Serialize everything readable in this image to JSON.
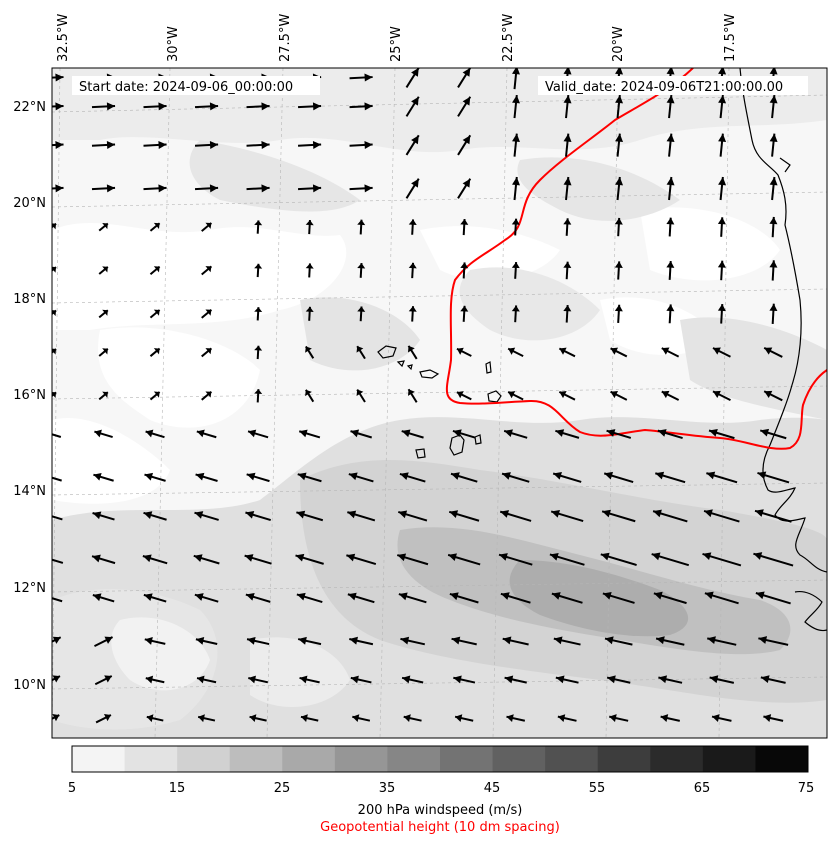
{
  "header": {
    "start_date": "Start date: 2024-09-06_00:00:00",
    "valid_date": "Valid_date: 2024-09-06T21:00:00.00"
  },
  "axes": {
    "lon_labels": [
      "32.5°W",
      "30°W",
      "27.5°W",
      "25°W",
      "22.5°W",
      "20°W",
      "17.5°W"
    ],
    "lat_labels": [
      "22°N",
      "20°N",
      "18°N",
      "16°N",
      "14°N",
      "12°N",
      "10°N"
    ],
    "lon_range": [
      -33.0,
      -15.7
    ],
    "lat_range": [
      8.9,
      22.8
    ],
    "grid": true
  },
  "colorbar": {
    "ticks": [
      "5",
      "15",
      "25",
      "35",
      "45",
      "55",
      "65",
      "75"
    ],
    "levels": [
      5,
      10,
      15,
      20,
      25,
      30,
      35,
      40,
      45,
      50,
      55,
      60,
      65,
      70,
      75
    ],
    "colors": [
      "#f4f4f4",
      "#e3e3e3",
      "#d1d1d1",
      "#bdbdbd",
      "#a9a9a9",
      "#969696",
      "#868686",
      "#737373",
      "#616161",
      "#515151",
      "#3d3d3d",
      "#2b2b2b",
      "#1a1a1a",
      "#080808"
    ],
    "title": "200 hPa windspeed (m/s)",
    "subtitle": "Geopotential height (10 dm spacing)",
    "subtitle_color": "#ff0000"
  },
  "contour_color": "#ff0000",
  "wind_field": {
    "lat_rows": [
      22.6,
      22.0,
      21.2,
      20.3,
      19.5,
      18.6,
      17.7,
      16.9,
      16.0,
      15.2,
      14.3,
      13.5,
      12.6,
      11.8,
      10.9,
      10.1,
      9.3
    ],
    "lon_start": -33.0,
    "lon_step": 1.15,
    "columns": 15
  }
}
